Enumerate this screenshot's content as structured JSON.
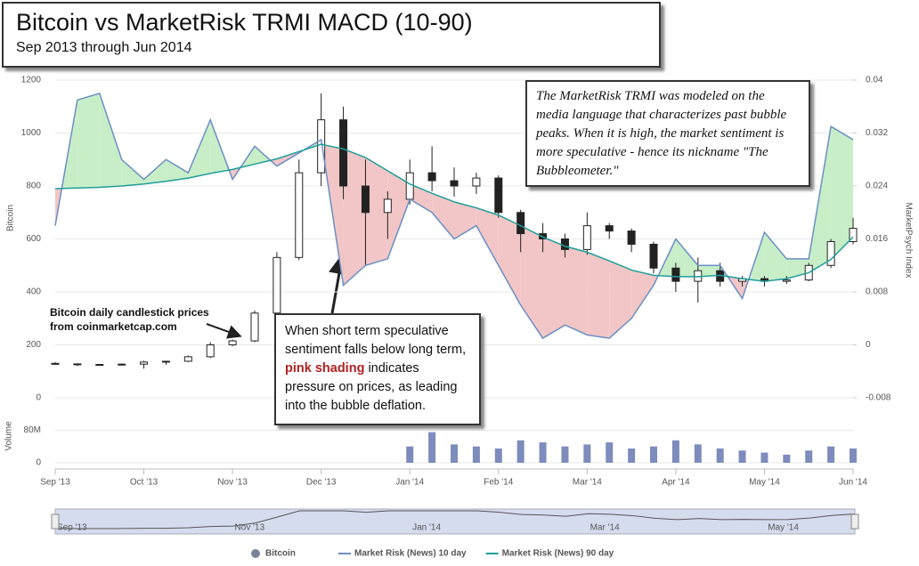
{
  "title": "Bitcoin vs MarketRisk TRMI MACD (10-90)",
  "subtitle": "Sep 2013 through Jun 2014",
  "note": "The MarketRisk TRMI was modeled on the media language that characterizes past bubble peaks.  When it is high, the market sentiment is more speculative - hence its nickname \"The Bubbleometer.\"",
  "candle_annotation": "Bitcoin daily candlestick prices from coinmarketcap.com",
  "shading_annotation": [
    "When short term speculative sentiment falls below long term, ",
    "pink shading",
    " indicates pressure on prices, as leading into the bubble deflation."
  ],
  "chart_data": [
    {
      "type": "candlestick",
      "categories": [
        "Sep '13",
        null,
        null,
        null,
        "Oct '13",
        null,
        null,
        null,
        "Nov '13",
        null,
        null,
        null,
        "Dec '13",
        null,
        null,
        null,
        "Jan '14",
        null,
        null,
        null,
        "Feb '14",
        null,
        null,
        null,
        "Mar '14",
        null,
        null,
        null,
        "Apr '14",
        null,
        null,
        null,
        "May '14",
        null,
        null,
        null,
        "Jun '14"
      ],
      "ylabel": "Bitcoin",
      "ylim": [
        0,
        1200
      ],
      "yticks": [
        0,
        200,
        400,
        600,
        800,
        1000,
        1200
      ],
      "y2label": "MarketPsych Index",
      "y2lim": [
        -0.008,
        0.04
      ],
      "y2ticks": [
        -0.008,
        0,
        0.008,
        0.016,
        0.024,
        0.032,
        0.04
      ],
      "grid": true,
      "up_color": "#ffffff",
      "down_color": "#222222",
      "fill_above_color": "#c8eec8",
      "fill_below_color": "#f2c6c6",
      "series": [
        {
          "name": "Bitcoin",
          "color": "#222222",
          "open": [
            130,
            128,
            125,
            126,
            127,
            135,
            138,
            155,
            200,
            215,
            320,
            530,
            850,
            1050,
            800,
            700,
            750,
            850,
            820,
            800,
            830,
            700,
            620,
            600,
            560,
            650,
            630,
            580,
            490,
            440,
            480,
            440,
            450,
            440,
            445,
            500,
            590
          ],
          "high": [
            135,
            130,
            128,
            130,
            140,
            140,
            160,
            210,
            220,
            330,
            550,
            900,
            1150,
            1100,
            900,
            780,
            900,
            950,
            870,
            850,
            840,
            710,
            660,
            620,
            700,
            660,
            640,
            590,
            510,
            530,
            510,
            460,
            460,
            460,
            510,
            600,
            680
          ],
          "low": [
            125,
            120,
            122,
            122,
            110,
            125,
            135,
            150,
            195,
            210,
            310,
            520,
            800,
            750,
            500,
            600,
            730,
            780,
            760,
            770,
            680,
            550,
            550,
            530,
            540,
            600,
            550,
            470,
            400,
            360,
            420,
            420,
            420,
            430,
            440,
            490,
            580
          ],
          "close": [
            128,
            125,
            126,
            127,
            135,
            138,
            155,
            200,
            215,
            320,
            530,
            850,
            1050,
            800,
            700,
            750,
            850,
            820,
            800,
            830,
            700,
            620,
            600,
            560,
            650,
            630,
            580,
            490,
            440,
            480,
            440,
            450,
            440,
            445,
            500,
            590,
            640
          ]
        },
        {
          "name": "Market Risk (News) 10 day",
          "color": "#6a8fc4",
          "axis": "y2",
          "values": [
            0.018,
            0.037,
            0.038,
            0.028,
            0.025,
            0.028,
            0.026,
            0.034,
            0.025,
            0.03,
            0.027,
            0.029,
            0.031,
            0.009,
            0.012,
            0.013,
            0.022,
            0.02,
            0.016,
            0.018,
            0.012,
            0.006,
            0.001,
            0.003,
            0.0015,
            0.001,
            0.004,
            0.009,
            0.016,
            0.012,
            0.012,
            0.007,
            0.017,
            0.013,
            0.013,
            0.033,
            0.031
          ]
        },
        {
          "name": "Market Risk (News) 90 day",
          "color": "#1f9e9a",
          "axis": "y2",
          "values": [
            0.0236,
            0.0237,
            0.0238,
            0.024,
            0.0243,
            0.0247,
            0.0252,
            0.0259,
            0.0265,
            0.0273,
            0.0281,
            0.0292,
            0.0303,
            0.0296,
            0.0283,
            0.0263,
            0.0243,
            0.0229,
            0.0216,
            0.0207,
            0.0196,
            0.018,
            0.0163,
            0.0149,
            0.014,
            0.0127,
            0.0113,
            0.0105,
            0.0103,
            0.0103,
            0.0105,
            0.01,
            0.0096,
            0.01,
            0.0109,
            0.0129,
            0.0163
          ]
        }
      ]
    },
    {
      "type": "bar",
      "ylabel": "Volume",
      "color": "#7d8cbc",
      "ylim": [
        0,
        120000000
      ],
      "yticks": [
        0,
        {
          "value": 80000000,
          "label": "80M"
        }
      ],
      "values": [
        null,
        null,
        null,
        null,
        null,
        null,
        null,
        null,
        null,
        null,
        null,
        null,
        null,
        null,
        null,
        null,
        40000000,
        75000000,
        45000000,
        40000000,
        35000000,
        55000000,
        50000000,
        40000000,
        45000000,
        50000000,
        35000000,
        40000000,
        55000000,
        45000000,
        35000000,
        30000000,
        25000000,
        20000000,
        30000000,
        40000000,
        35000000
      ]
    }
  ]
}
